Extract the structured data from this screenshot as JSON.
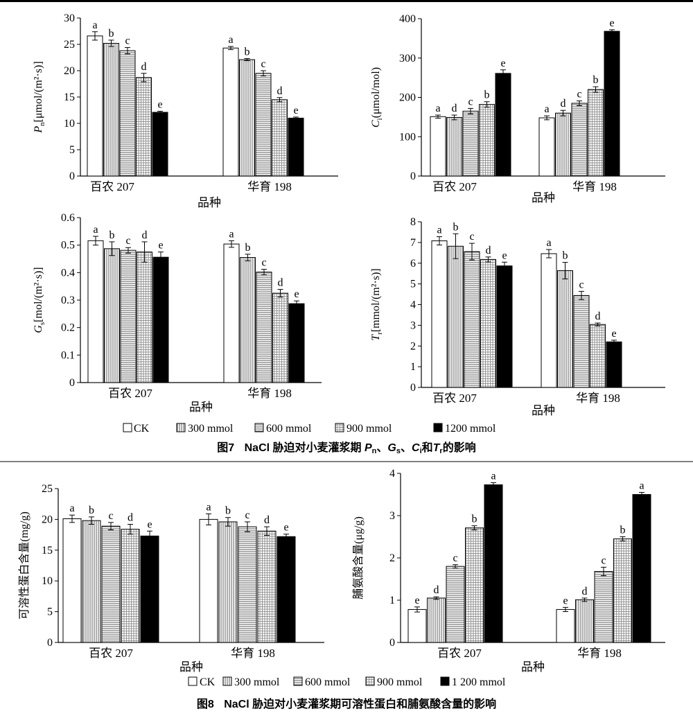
{
  "style": {
    "palette": [
      "#ffffff",
      "#b5b5b5",
      "#d4d4d4",
      "#e2e2e2",
      "#000000"
    ],
    "patterns": [
      "none",
      "vertical-lines",
      "horizontal-lines",
      "grid",
      "solid"
    ]
  },
  "figure7": {
    "legend": [
      "CK",
      "300 mmol",
      "600 mmol",
      "900 mmol",
      "1200 mmol"
    ],
    "caption": {
      "prefix": "图7",
      "middle": "NaCl 胁迫对小麦灌浆期 ",
      "v1": "P",
      "s1": "n",
      "sep1": "、",
      "v2": "G",
      "s2": "s",
      "sep2": "、",
      "v3": "C",
      "s3": "i",
      "and": "和",
      "v4": "T",
      "s4": "r",
      "suffix": "的影响"
    }
  },
  "figure8": {
    "legend": [
      "CK",
      "300 mmol",
      "600 mmol",
      "900 mmol",
      "1 200 mmol"
    ],
    "caption": {
      "prefix": "图8",
      "text": "NaCl 胁迫对小麦灌浆期可溶性蛋白和脯氨酸含量的影响"
    }
  },
  "chart_data": [
    {
      "id": "pn",
      "type": "bar",
      "ylabel_var": "P",
      "ylabel_sub": "n",
      "ylabel_rest": "[μmol/(m²·s)]",
      "xlabel": "品种",
      "categories": [
        "百农 207",
        "华育 198"
      ],
      "ylim": [
        0,
        30
      ],
      "ticks": [
        0,
        5,
        10,
        15,
        20,
        25,
        30
      ],
      "series_labels": [
        "CK",
        "300 mmol",
        "600 mmol",
        "900 mmol",
        "1200 mmol"
      ],
      "values": [
        [
          26.6,
          25.2,
          23.8,
          18.7,
          12.1
        ],
        [
          24.3,
          22.1,
          19.5,
          14.5,
          11.0
        ]
      ],
      "errors": [
        [
          0.8,
          0.6,
          0.6,
          0.8,
          0.2
        ],
        [
          0.3,
          0.2,
          0.5,
          0.4,
          0.2
        ]
      ],
      "letters": [
        [
          "a",
          "b",
          "c",
          "d",
          "e"
        ],
        [
          "a",
          "b",
          "c",
          "d",
          "e"
        ]
      ]
    },
    {
      "id": "ci",
      "type": "bar",
      "ylabel_var": "C",
      "ylabel_sub": "i",
      "ylabel_rest": "(μmol/mol)",
      "xlabel": "品种",
      "categories": [
        "百农 207",
        "华育 198"
      ],
      "ylim": [
        0,
        400
      ],
      "ticks": [
        0,
        100,
        200,
        300,
        400
      ],
      "series_labels": [
        "CK",
        "300 mmol",
        "600 mmol",
        "900 mmol",
        "1200 mmol"
      ],
      "values": [
        [
          151,
          149,
          165,
          182,
          261
        ],
        [
          148,
          160,
          185,
          220,
          368
        ]
      ],
      "errors": [
        [
          4,
          6,
          7,
          7,
          9
        ],
        [
          5,
          7,
          6,
          7,
          4
        ]
      ],
      "letters": [
        [
          "a",
          "d",
          "c",
          "b",
          "e"
        ],
        [
          "a",
          "d",
          "c",
          "b",
          "e"
        ]
      ]
    },
    {
      "id": "gs",
      "type": "bar",
      "ylabel_var": "G",
      "ylabel_sub": "s",
      "ylabel_rest": "[mol/(m²·s)]",
      "xlabel": "品种",
      "categories": [
        "百农 207",
        "华育 198"
      ],
      "ylim": [
        0,
        0.6
      ],
      "ticks": [
        0,
        0.1,
        0.2,
        0.3,
        0.4,
        0.5,
        0.6
      ],
      "series_labels": [
        "CK",
        "300 mmol",
        "600 mmol",
        "900 mmol",
        "1200 mmol"
      ],
      "values": [
        [
          0.516,
          0.487,
          0.481,
          0.475,
          0.456
        ],
        [
          0.504,
          0.455,
          0.402,
          0.325,
          0.287
        ]
      ],
      "errors": [
        [
          0.016,
          0.025,
          0.01,
          0.037,
          0.019
        ],
        [
          0.012,
          0.012,
          0.01,
          0.014,
          0.01
        ]
      ],
      "letters": [
        [
          "a",
          "b",
          "c",
          "d",
          "e"
        ],
        [
          "a",
          "b",
          "c",
          "d",
          "e"
        ]
      ]
    },
    {
      "id": "tr",
      "type": "bar",
      "ylabel_var": "T",
      "ylabel_sub": "r",
      "ylabel_rest": "[mmol/(m²·s)]",
      "xlabel": "品种",
      "categories": [
        "百农 207",
        "华育 198"
      ],
      "ylim": [
        0,
        8
      ],
      "ticks": [
        0,
        1,
        2,
        3,
        4,
        5,
        6,
        7,
        8
      ],
      "series_labels": [
        "CK",
        "300 mmol",
        "600 mmol",
        "900 mmol",
        "1200 mmol"
      ],
      "values": [
        [
          7.08,
          6.82,
          6.56,
          6.18,
          5.87
        ],
        [
          6.46,
          5.64,
          4.44,
          3.04,
          2.2
        ]
      ],
      "errors": [
        [
          0.2,
          0.6,
          0.4,
          0.12,
          0.18
        ],
        [
          0.2,
          0.4,
          0.2,
          0.07,
          0.08
        ]
      ],
      "letters": [
        [
          "a",
          "b",
          "c",
          "d",
          "e"
        ],
        [
          "a",
          "b",
          "c",
          "d",
          "e"
        ]
      ]
    },
    {
      "id": "protein",
      "type": "bar",
      "ylabel_var": "",
      "ylabel_sub": "",
      "ylabel_rest": "可溶性蛋白含量(mg/g)",
      "xlabel": "品种",
      "categories": [
        "百农 207",
        "华育 198"
      ],
      "ylim": [
        0,
        25
      ],
      "ticks": [
        0,
        5,
        10,
        15,
        20,
        25
      ],
      "series_labels": [
        "CK",
        "300 mmol",
        "600 mmol",
        "900 mmol",
        "1 200 mmol"
      ],
      "values": [
        [
          20.1,
          19.8,
          18.9,
          18.4,
          17.3
        ],
        [
          20.0,
          19.6,
          18.8,
          18.1,
          17.2
        ]
      ],
      "errors": [
        [
          0.6,
          0.6,
          0.6,
          0.8,
          0.8
        ],
        [
          0.9,
          0.7,
          0.8,
          0.7,
          0.4
        ]
      ],
      "letters": [
        [
          "a",
          "b",
          "c",
          "d",
          "e"
        ],
        [
          "a",
          "b",
          "c",
          "d",
          "e"
        ]
      ]
    },
    {
      "id": "proline",
      "type": "bar",
      "ylabel_var": "",
      "ylabel_sub": "",
      "ylabel_rest": "脯氨酸含量(μg/g)",
      "xlabel": "品种",
      "categories": [
        "百农 207",
        "华育 198"
      ],
      "ylim": [
        0,
        4
      ],
      "ticks": [
        0,
        1,
        2,
        3,
        4
      ],
      "series_labels": [
        "CK",
        "300 mmol",
        "600 mmol",
        "900 mmol",
        "1 200 mmol"
      ],
      "values": [
        [
          0.78,
          1.05,
          1.8,
          2.71,
          3.73
        ],
        [
          0.78,
          1.01,
          1.68,
          2.45,
          3.5
        ]
      ],
      "errors": [
        [
          0.06,
          0.03,
          0.04,
          0.05,
          0.05
        ],
        [
          0.05,
          0.04,
          0.1,
          0.05,
          0.05
        ]
      ],
      "letters": [
        [
          "e",
          "d",
          "c",
          "b",
          "a"
        ],
        [
          "e",
          "d",
          "c",
          "b",
          "a"
        ]
      ]
    }
  ]
}
